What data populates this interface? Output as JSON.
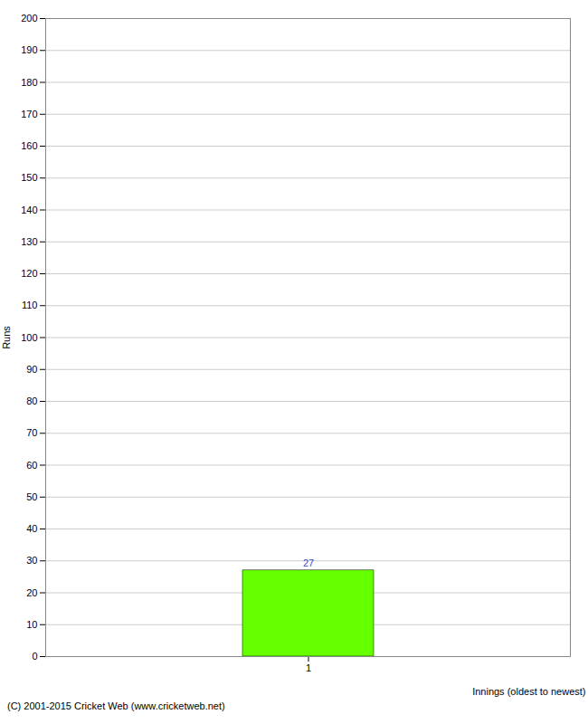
{
  "chart_data": {
    "type": "bar",
    "xlabel": "Innings (oldest to newest)",
    "ylabel": "Runs",
    "categories": [
      "1"
    ],
    "values": [
      27
    ],
    "color": "#66ff00",
    "ylim": [
      0,
      200
    ],
    "yticks": [
      0,
      10,
      20,
      30,
      40,
      50,
      60,
      70,
      80,
      90,
      100,
      110,
      120,
      130,
      140,
      150,
      160,
      170,
      180,
      190,
      200
    ],
    "grid": true,
    "data_labels": true,
    "footer": "(C) 2001-2015 Cricket Web (www.cricketweb.net)"
  }
}
